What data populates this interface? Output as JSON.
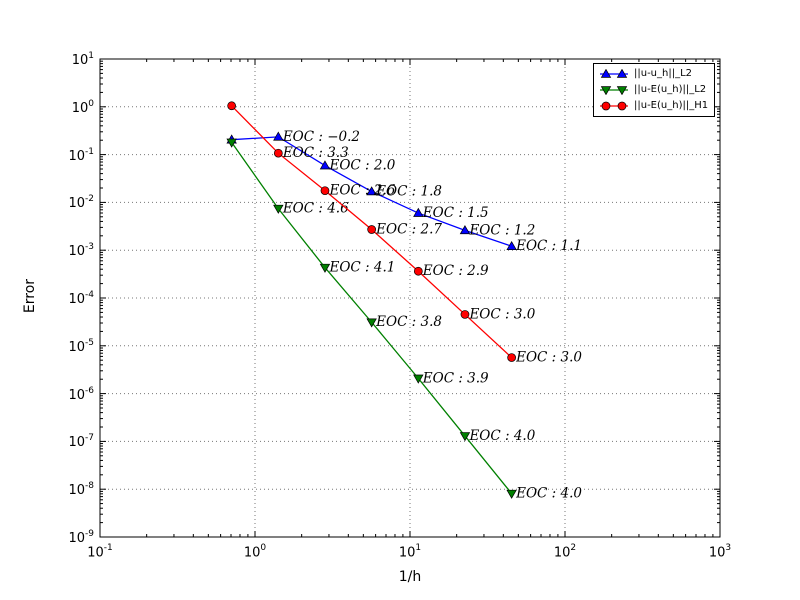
{
  "figure": {
    "background": "#ffffff",
    "axis_color": "#000000",
    "grid_color": "#777777"
  },
  "chart_data": {
    "type": "line",
    "title": "",
    "xlabel": "1/h",
    "ylabel": "Error",
    "x_scale": "log",
    "y_scale": "log",
    "xlim": [
      0.1,
      1000
    ],
    "ylim": [
      1e-09,
      10
    ],
    "grid": "dotted-major",
    "legend_position": "upper-right",
    "x_tick_exponents": [
      -1,
      0,
      1,
      2,
      3
    ],
    "y_tick_exponents": [
      1,
      0,
      -1,
      -2,
      -3,
      -4,
      -5,
      -6,
      -7,
      -8,
      -9
    ],
    "annotation_prefix": "EOC : ",
    "x": [
      0.707,
      1.414,
      2.828,
      5.657,
      11.314,
      22.627,
      45.255
    ],
    "series": [
      {
        "name": "||u-u_h||_L2",
        "color": "#0000ff",
        "marker": "triangle-up",
        "values": [
          0.205,
          0.235,
          0.0589,
          0.0169,
          0.00598,
          0.0026,
          0.00121
        ],
        "eoc": [
          "-0.2",
          "2.0",
          "1.8",
          "1.5",
          "1.2",
          "1.1"
        ]
      },
      {
        "name": "||u-E(u_h)||_L2",
        "color": "#008000",
        "marker": "triangle-down",
        "values": [
          0.18,
          0.00742,
          0.000433,
          3.11e-05,
          2.08e-06,
          1.3e-07,
          8.1e-09
        ],
        "eoc": [
          "4.6",
          "4.1",
          "3.8",
          "3.9",
          "4.0",
          "4.0"
        ]
      },
      {
        "name": "||u-E(u_h)||_H1",
        "color": "#ff0000",
        "marker": "circle",
        "values": [
          1.05,
          0.107,
          0.0176,
          0.00271,
          0.000363,
          4.53e-05,
          5.67e-06
        ],
        "eoc": [
          "3.3",
          "2.6",
          "2.7",
          "2.9",
          "3.0",
          "3.0"
        ]
      }
    ]
  }
}
